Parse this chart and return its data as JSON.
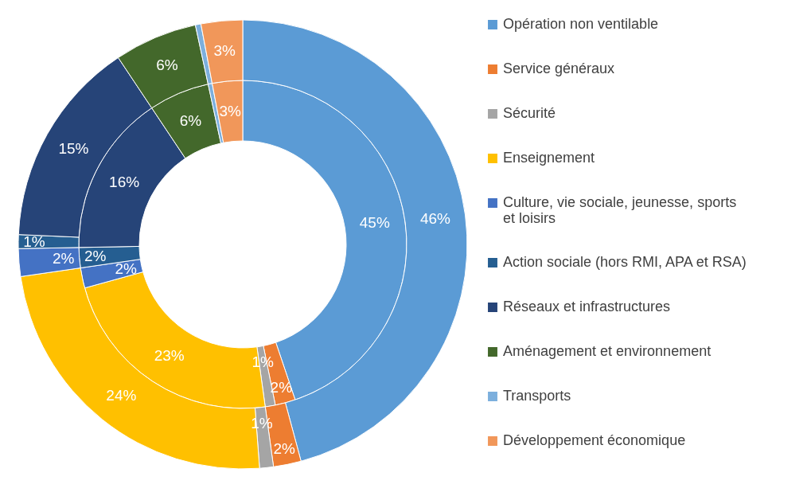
{
  "chart_data": {
    "type": "donut",
    "categories": [
      "Opération non ventilable",
      "Service généraux",
      "Sécurité",
      "Enseignement",
      "Culture, vie sociale, jeunesse, sports et loisirs",
      "Action sociale (hors RMI, APA et RSA)",
      "Réseaux et infrastructures",
      "Aménagement et environnement",
      "Transports",
      "Développement économique"
    ],
    "colors": [
      "#5b9bd5",
      "#ed7d31",
      "#a5a5a5",
      "#ffc000",
      "#4472c4",
      "#255e91",
      "#264478",
      "#43682b",
      "#7cafdd",
      "#f1975a"
    ],
    "series": [
      {
        "values": [
          45,
          2,
          1,
          23,
          2,
          2,
          16,
          6,
          0.4,
          3
        ],
        "value_labels": [
          "45%",
          "2%",
          "1%",
          "23%",
          "2%",
          "2%",
          "16%",
          "6%",
          null,
          "3%"
        ]
      },
      {
        "values": [
          46,
          2,
          1,
          24,
          2,
          1,
          15,
          6,
          0.4,
          3
        ],
        "value_labels": [
          "46%",
          "2%",
          "1%",
          "24%",
          "2%",
          "1%",
          "15%",
          "6%",
          null,
          "3%"
        ]
      }
    ],
    "legend": "right"
  }
}
